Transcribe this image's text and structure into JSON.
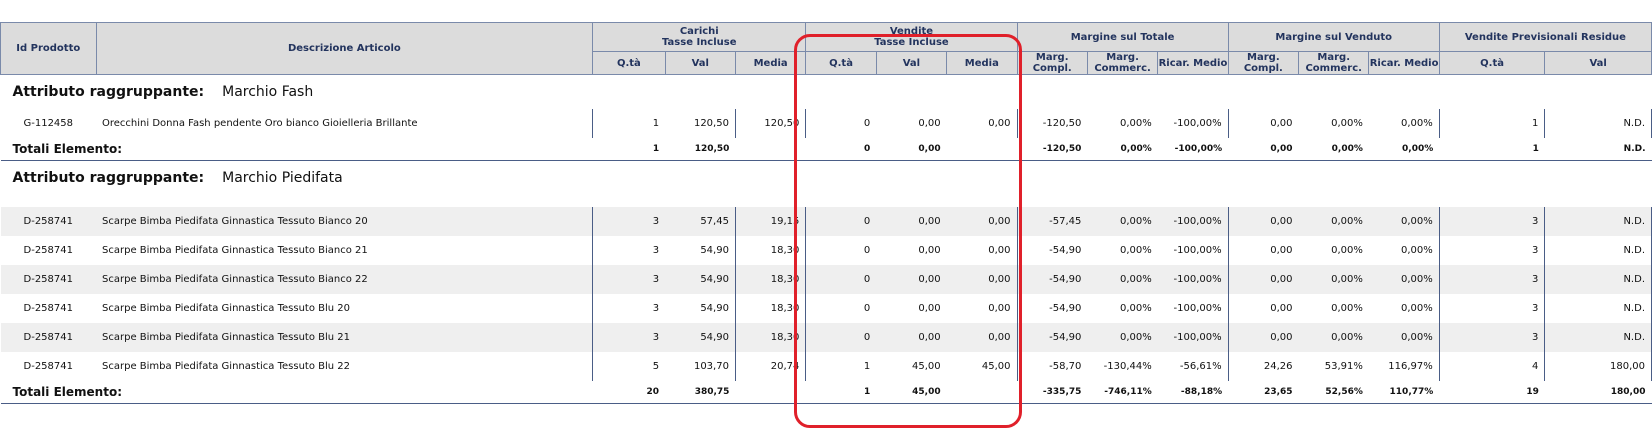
{
  "header": {
    "id_prodotto": "Id Prodotto",
    "descrizione": "Descrizione Articolo",
    "carichi": "Carichi\nTasse Incluse",
    "vendite": "Vendite\nTasse Incluse",
    "margine_totale": "Margine sul Totale",
    "margine_venduto": "Margine sul Venduto",
    "vendite_previsionali": "Vendite Previsionali Residue",
    "sub": {
      "qta": "Q.tà",
      "val": "Val",
      "media": "Media",
      "marg_compl": "Marg.\nCompl.",
      "marg_commerc": "Marg.\nCommerc.",
      "ricar_medio": "Ricar. Medio"
    }
  },
  "groups": [
    {
      "label": "Attributo raggruppante:",
      "name": "Marchio Fash",
      "rows": [
        [
          "G-112458",
          "Orecchini Donna Fash pendente Oro bianco Gioielleria Brillante",
          "1",
          "120,50",
          "120,50",
          "0",
          "0,00",
          "0,00",
          "-120,50",
          "0,00%",
          "-100,00%",
          "0,00",
          "0,00%",
          "0,00%",
          "1",
          "N.D."
        ]
      ],
      "total": {
        "label": "Totali Elemento:",
        "values": [
          "1",
          "120,50",
          "",
          "0",
          "0,00",
          "",
          "-120,50",
          "0,00%",
          "-100,00%",
          "0,00",
          "0,00%",
          "0,00%",
          "1",
          "N.D."
        ]
      }
    },
    {
      "label": "Attributo raggruppante:",
      "name": "Marchio Piedifata",
      "rows": [
        [
          "D-258741",
          "Scarpe Bimba Piedifata Ginnastica Tessuto Bianco 20",
          "3",
          "57,45",
          "19,15",
          "0",
          "0,00",
          "0,00",
          "-57,45",
          "0,00%",
          "-100,00%",
          "0,00",
          "0,00%",
          "0,00%",
          "3",
          "N.D."
        ],
        [
          "D-258741",
          "Scarpe Bimba Piedifata Ginnastica Tessuto Bianco 21",
          "3",
          "54,90",
          "18,30",
          "0",
          "0,00",
          "0,00",
          "-54,90",
          "0,00%",
          "-100,00%",
          "0,00",
          "0,00%",
          "0,00%",
          "3",
          "N.D."
        ],
        [
          "D-258741",
          "Scarpe Bimba Piedifata Ginnastica Tessuto Bianco 22",
          "3",
          "54,90",
          "18,30",
          "0",
          "0,00",
          "0,00",
          "-54,90",
          "0,00%",
          "-100,00%",
          "0,00",
          "0,00%",
          "0,00%",
          "3",
          "N.D."
        ],
        [
          "D-258741",
          "Scarpe Bimba Piedifata Ginnastica Tessuto Blu 20",
          "3",
          "54,90",
          "18,30",
          "0",
          "0,00",
          "0,00",
          "-54,90",
          "0,00%",
          "-100,00%",
          "0,00",
          "0,00%",
          "0,00%",
          "3",
          "N.D."
        ],
        [
          "D-258741",
          "Scarpe Bimba Piedifata Ginnastica Tessuto Blu 21",
          "3",
          "54,90",
          "18,30",
          "0",
          "0,00",
          "0,00",
          "-54,90",
          "0,00%",
          "-100,00%",
          "0,00",
          "0,00%",
          "0,00%",
          "3",
          "N.D."
        ],
        [
          "D-258741",
          "Scarpe Bimba Piedifata Ginnastica Tessuto Blu 22",
          "5",
          "103,70",
          "20,74",
          "1",
          "45,00",
          "45,00",
          "-58,70",
          "-130,44%",
          "-56,61%",
          "24,26",
          "53,91%",
          "116,97%",
          "4",
          "180,00"
        ]
      ],
      "total": {
        "label": "Totali Elemento:",
        "values": [
          "20",
          "380,75",
          "",
          "1",
          "45,00",
          "",
          "-335,75",
          "-746,11%",
          "-88,18%",
          "23,65",
          "52,56%",
          "110,77%",
          "19",
          "180,00"
        ]
      }
    }
  ],
  "colors": {
    "header_bg": "#dcdcdc",
    "header_text": "#23345e",
    "border": "#4a5d86",
    "stripe": "#efefef",
    "highlight": "#e0202a"
  }
}
